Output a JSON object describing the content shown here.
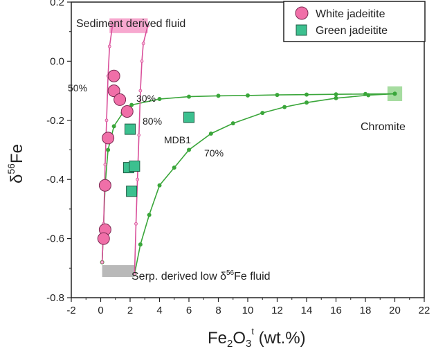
{
  "chart_data": {
    "type": "scatter",
    "xlabel_base": "Fe",
    "xlabel_sub1": "2",
    "xlabel_mid": "O",
    "xlabel_sub2": "3",
    "xlabel_sup": "t",
    "xlabel_tail": " (wt.%)",
    "ylabel_delta": "δ",
    "ylabel_sup": "56",
    "ylabel_tail": "Fe",
    "xlim": [
      -2,
      22
    ],
    "ylim": [
      -0.8,
      0.2
    ],
    "xticks": [
      "-2",
      "0",
      "2",
      "4",
      "6",
      "8",
      "10",
      "12",
      "14",
      "16",
      "18",
      "20",
      "22"
    ],
    "yticks": [
      "0.2",
      "0.0",
      "-0.2",
      "-0.4",
      "-0.6",
      "-0.8"
    ],
    "legend": {
      "position": "top-right",
      "entries": [
        {
          "label": "White jadeitite",
          "marker": "circle",
          "color": "#f06fa8"
        },
        {
          "label": "Green jadeitite",
          "marker": "square",
          "color": "#3cc08f"
        }
      ]
    },
    "series": [
      {
        "name": "White jadeitite",
        "marker": "circle",
        "color": "#f06fa8",
        "points": [
          {
            "x": 0.9,
            "y": -0.05
          },
          {
            "x": 0.9,
            "y": -0.1
          },
          {
            "x": 1.3,
            "y": -0.13
          },
          {
            "x": 1.8,
            "y": -0.17
          },
          {
            "x": 0.5,
            "y": -0.26
          },
          {
            "x": 0.3,
            "y": -0.42
          },
          {
            "x": 0.3,
            "y": -0.57
          },
          {
            "x": 0.2,
            "y": -0.6
          }
        ]
      },
      {
        "name": "Green jadeitite",
        "marker": "square",
        "color": "#3cc08f",
        "points": [
          {
            "x": 2.0,
            "y": -0.23
          },
          {
            "x": 1.9,
            "y": -0.36
          },
          {
            "x": 2.3,
            "y": -0.355
          },
          {
            "x": 2.1,
            "y": -0.44
          },
          {
            "x": 6.0,
            "y": -0.19
          }
        ]
      }
    ],
    "mixing_curves": [
      {
        "color": "#3aa63a",
        "points": [
          [
            0.1,
            -0.68
          ],
          [
            0.3,
            -0.42
          ],
          [
            0.5,
            -0.3
          ],
          [
            0.9,
            -0.22
          ],
          [
            1.5,
            -0.175
          ],
          [
            2.1,
            -0.148
          ],
          [
            4,
            -0.128
          ],
          [
            6,
            -0.12
          ],
          [
            8,
            -0.117
          ],
          [
            10,
            -0.116
          ],
          [
            12,
            -0.114
          ],
          [
            14,
            -0.113
          ],
          [
            16,
            -0.112
          ],
          [
            18,
            -0.111
          ],
          [
            20,
            -0.11
          ]
        ]
      },
      {
        "color": "#3aa63a",
        "points": [
          [
            2.3,
            -0.72
          ],
          [
            2.7,
            -0.62
          ],
          [
            3.3,
            -0.52
          ],
          [
            4,
            -0.42
          ],
          [
            5,
            -0.36
          ],
          [
            6,
            -0.3
          ],
          [
            7.5,
            -0.245
          ],
          [
            9,
            -0.21
          ],
          [
            11,
            -0.175
          ],
          [
            12.5,
            -0.155
          ],
          [
            14,
            -0.14
          ],
          [
            16,
            -0.125
          ],
          [
            18.2,
            -0.115
          ],
          [
            20,
            -0.11
          ]
        ]
      },
      {
        "color": "#d94f9a",
        "points": [
          [
            0.1,
            -0.68
          ],
          [
            0.2,
            -0.55
          ],
          [
            0.3,
            -0.35
          ],
          [
            0.4,
            -0.2
          ],
          [
            0.5,
            -0.05
          ],
          [
            0.6,
            0.05
          ],
          [
            0.8,
            0.12
          ]
        ]
      },
      {
        "color": "#d94f9a",
        "points": [
          [
            2.3,
            -0.72
          ],
          [
            2.4,
            -0.55
          ],
          [
            2.5,
            -0.4
          ],
          [
            2.6,
            -0.25
          ],
          [
            2.7,
            -0.1
          ],
          [
            2.8,
            0.0
          ],
          [
            2.9,
            0.06
          ],
          [
            3.2,
            0.12
          ]
        ]
      }
    ],
    "end_members": [
      {
        "label": "Sediment derived fluid",
        "x": [
          0.6,
          3.2
        ],
        "y": [
          0.095,
          0.145
        ],
        "color": "#f7a8cf"
      },
      {
        "label": "Serp. derived low δ56Fe fluid",
        "x": [
          0.1,
          2.3
        ],
        "y": [
          -0.73,
          -0.69
        ],
        "color": "#b9b9b9"
      },
      {
        "label": "Chromite",
        "x": [
          19.5,
          20.5
        ],
        "y": [
          -0.135,
          -0.085
        ],
        "color": "#a6dca0"
      }
    ],
    "labels": {
      "sediment": "Sediment derived fluid",
      "serp_main": "Serp. derived low ",
      "serp_delta": "δ",
      "serp_sup": "56",
      "serp_tail": "Fe fluid",
      "chromite": "Chromite",
      "mdb1": "MDB1",
      "p50": "50%",
      "p30": "30%",
      "p80": "80%",
      "p70": "70%"
    }
  }
}
